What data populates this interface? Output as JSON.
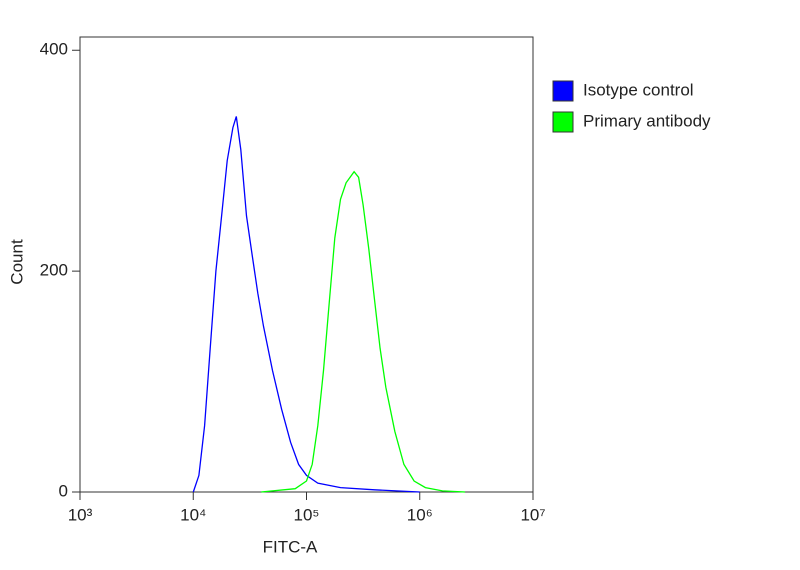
{
  "chart_data": {
    "type": "line",
    "x_axis_label": "FITC-A",
    "y_axis_label": "Count",
    "xscale": "log",
    "xlim": [
      1000,
      10000000
    ],
    "xticks": [
      {
        "value": 1000,
        "label": "10³"
      },
      {
        "value": 10000,
        "label": "10⁴"
      },
      {
        "value": 100000,
        "label": "10⁵"
      },
      {
        "value": 1000000,
        "label": "10⁶"
      },
      {
        "value": 10000000,
        "label": "10⁷"
      }
    ],
    "ylim": [
      0,
      412
    ],
    "yticks": [
      0,
      200,
      400
    ],
    "legend": "right",
    "series": [
      {
        "name": "Isotype control",
        "color": "#0000ff",
        "x": [
          10000,
          11220,
          12589,
          14125,
          15849,
          17783,
          19953,
          22387,
          23988,
          26303,
          29512,
          33113,
          37154,
          41687,
          50119,
          60256,
          72444,
          85114,
          100000,
          125893,
          199526,
          398107,
          1000000
        ],
        "values": [
          0,
          15,
          60,
          130,
          200,
          250,
          300,
          330,
          340,
          310,
          250,
          215,
          180,
          150,
          110,
          75,
          45,
          25,
          15,
          8,
          4,
          2,
          0
        ]
      },
      {
        "name": "Primary antibody",
        "color": "#00ff00",
        "x": [
          39811,
          79433,
          100000,
          112202,
          125893,
          141254,
          158489,
          177828,
          199526,
          223872,
          263027,
          288403,
          316228,
          354813,
          398107,
          446684,
          501187,
          602560,
          724436,
          891251,
          1122018,
          1584893,
          2511886
        ],
        "values": [
          0,
          3,
          10,
          25,
          60,
          110,
          170,
          230,
          265,
          280,
          290,
          285,
          260,
          220,
          175,
          130,
          95,
          55,
          25,
          10,
          4,
          1,
          0
        ]
      }
    ]
  }
}
